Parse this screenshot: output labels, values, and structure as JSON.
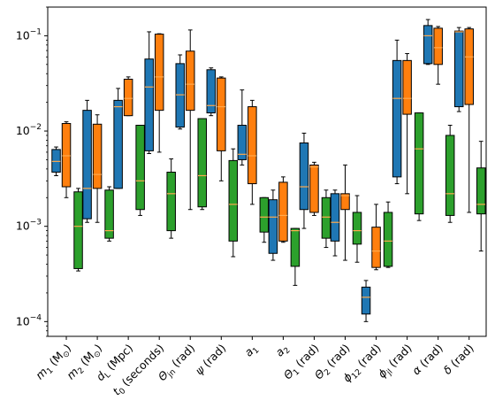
{
  "chart_data": {
    "type": "box",
    "title": "",
    "xlabel": "",
    "ylabel": "",
    "yscale": "log",
    "ylim": [
      7e-05,
      0.2
    ],
    "y_ticks": [
      {
        "value": 0.0001,
        "base": "10",
        "exp": "−4"
      },
      {
        "value": 0.001,
        "base": "10",
        "exp": "−3"
      },
      {
        "value": 0.01,
        "base": "10",
        "exp": "−2"
      },
      {
        "value": 0.1,
        "base": "10",
        "exp": "−1"
      }
    ],
    "categories": [
      {
        "main": "m",
        "sub": "1",
        "rest": " (M",
        "sub2": "⊙",
        "end": ")"
      },
      {
        "main": "m",
        "sub": "2",
        "rest": " (M",
        "sub2": "⊙",
        "end": ")"
      },
      {
        "main": "d",
        "sub": "L",
        "rest": " (Mpc)",
        "sub2": "",
        "end": ""
      },
      {
        "main": "t",
        "sub": "0",
        "rest": " (seconds)",
        "sub2": "",
        "end": ""
      },
      {
        "main": "Θ",
        "sub": "jn",
        "rest": " (rad)",
        "sub2": "",
        "end": ""
      },
      {
        "main": "ψ",
        "sub": "",
        "rest": " (rad)",
        "sub2": "",
        "end": ""
      },
      {
        "main": "a",
        "sub": "1",
        "rest": "",
        "sub2": "",
        "end": ""
      },
      {
        "main": "a",
        "sub": "2",
        "rest": "",
        "sub2": "",
        "end": ""
      },
      {
        "main": "Θ",
        "sub": "1",
        "rest": " (rad)",
        "sub2": "",
        "end": ""
      },
      {
        "main": "Θ",
        "sub": "2",
        "rest": " (rad)",
        "sub2": "",
        "end": ""
      },
      {
        "main": "ϕ",
        "sub": "12",
        "rest": " (rad)",
        "sub2": "",
        "end": ""
      },
      {
        "main": "ϕ",
        "sub": "jl",
        "rest": " (rad)",
        "sub2": "",
        "end": ""
      },
      {
        "main": "α",
        "sub": "",
        "rest": " (rad)",
        "sub2": "",
        "end": ""
      },
      {
        "main": "δ",
        "sub": "",
        "rest": " (rad)",
        "sub2": "",
        "end": ""
      }
    ],
    "series": [
      {
        "color": "#1f77b4",
        "boxes": [
          {
            "whislo": 0.0034,
            "q1": 0.0037,
            "med": 0.0048,
            "q3": 0.0064,
            "whishi": 0.0068
          },
          {
            "whislo": 0.0011,
            "q1": 0.0012,
            "med": 0.0025,
            "q3": 0.0165,
            "whishi": 0.021
          },
          {
            "whislo": 0.0025,
            "q1": 0.0025,
            "med": 0.018,
            "q3": 0.021,
            "whishi": 0.028
          },
          {
            "whislo": 0.0058,
            "q1": 0.0062,
            "med": 0.029,
            "q3": 0.057,
            "whishi": 0.11
          },
          {
            "whislo": 0.0105,
            "q1": 0.011,
            "med": 0.024,
            "q3": 0.051,
            "whishi": 0.063
          },
          {
            "whislo": 0.0145,
            "q1": 0.0155,
            "med": 0.0185,
            "q3": 0.044,
            "whishi": 0.046
          },
          {
            "whislo": 0.0044,
            "q1": 0.005,
            "med": 0.0057,
            "q3": 0.0115,
            "whishi": 0.027
          },
          {
            "whislo": 0.00044,
            "q1": 0.00052,
            "med": 0.00125,
            "q3": 0.0019,
            "whishi": 0.0024
          },
          {
            "whislo": 0.00095,
            "q1": 0.0015,
            "med": 0.0026,
            "q3": 0.0075,
            "whishi": 0.0095
          },
          {
            "whislo": 0.00049,
            "q1": 0.0007,
            "med": 0.0011,
            "q3": 0.0022,
            "whishi": 0.0024
          },
          {
            "whislo": 0.0001,
            "q1": 0.00012,
            "med": 0.00018,
            "q3": 0.00023,
            "whishi": 0.00027
          },
          {
            "whislo": 0.0028,
            "q1": 0.0033,
            "med": 0.022,
            "q3": 0.055,
            "whishi": 0.09
          },
          {
            "whislo": 0.05,
            "q1": 0.051,
            "med": 0.1,
            "q3": 0.128,
            "whishi": 0.148
          },
          {
            "whislo": 0.016,
            "q1": 0.018,
            "med": 0.11,
            "q3": 0.112,
            "whishi": 0.122
          }
        ]
      },
      {
        "color": "#ff7f0e",
        "boxes": [
          {
            "whislo": 0.002,
            "q1": 0.0026,
            "med": 0.0055,
            "q3": 0.012,
            "whishi": 0.0125
          },
          {
            "whislo": 0.0011,
            "q1": 0.0025,
            "med": 0.0035,
            "q3": 0.0118,
            "whishi": 0.0148
          },
          {
            "whislo": 0.0145,
            "q1": 0.0145,
            "med": 0.022,
            "q3": 0.035,
            "whishi": 0.037
          },
          {
            "whislo": 0.006,
            "q1": 0.0165,
            "med": 0.037,
            "q3": 0.104,
            "whishi": 0.105
          },
          {
            "whislo": 0.0015,
            "q1": 0.0165,
            "med": 0.031,
            "q3": 0.069,
            "whishi": 0.115
          },
          {
            "whislo": 0.003,
            "q1": 0.0062,
            "med": 0.018,
            "q3": 0.036,
            "whishi": 0.037
          },
          {
            "whislo": 0.0017,
            "q1": 0.0028,
            "med": 0.0055,
            "q3": 0.018,
            "whishi": 0.021
          },
          {
            "whislo": 0.00068,
            "q1": 0.0007,
            "med": 0.0013,
            "q3": 0.0029,
            "whishi": 0.0033
          },
          {
            "whislo": 0.0013,
            "q1": 0.0014,
            "med": 0.0042,
            "q3": 0.0044,
            "whishi": 0.0047
          },
          {
            "whislo": 0.00044,
            "q1": 0.0015,
            "med": 0.0021,
            "q3": 0.0022,
            "whishi": 0.0044
          },
          {
            "whislo": 0.00035,
            "q1": 0.00037,
            "med": 0.00055,
            "q3": 0.00098,
            "whishi": 0.0017
          },
          {
            "whislo": 0.0022,
            "q1": 0.015,
            "med": 0.022,
            "q3": 0.055,
            "whishi": 0.065
          },
          {
            "whislo": 0.031,
            "q1": 0.05,
            "med": 0.075,
            "q3": 0.12,
            "whishi": 0.125
          },
          {
            "whislo": 0.0014,
            "q1": 0.019,
            "med": 0.06,
            "q3": 0.118,
            "whishi": 0.122
          }
        ]
      },
      {
        "color": "#2ca02c",
        "boxes": [
          {
            "whislo": 0.00034,
            "q1": 0.00036,
            "med": 0.001,
            "q3": 0.0023,
            "whishi": 0.0025
          },
          {
            "whislo": 0.0007,
            "q1": 0.00075,
            "med": 0.0009,
            "q3": 0.0024,
            "whishi": 0.0026
          },
          {
            "whislo": 0.0013,
            "q1": 0.0015,
            "med": 0.003,
            "q3": 0.0115,
            "whishi": 0.0115
          },
          {
            "whislo": 0.00075,
            "q1": 0.0009,
            "med": 0.0022,
            "q3": 0.0037,
            "whishi": 0.0051
          },
          {
            "whislo": 0.0015,
            "q1": 0.0016,
            "med": 0.0034,
            "q3": 0.0135,
            "whishi": 0.0135
          },
          {
            "whislo": 0.00048,
            "q1": 0.0007,
            "med": 0.0017,
            "q3": 0.0049,
            "whishi": 0.0065
          },
          {
            "whislo": 0.00068,
            "q1": 0.00087,
            "med": 0.00125,
            "q3": 0.002,
            "whishi": 0.002
          },
          {
            "whislo": 0.00024,
            "q1": 0.00038,
            "med": 0.0009,
            "q3": 0.00095,
            "whishi": 0.00095
          },
          {
            "whislo": 0.0006,
            "q1": 0.00075,
            "med": 0.00125,
            "q3": 0.002,
            "whishi": 0.0024
          },
          {
            "whislo": 0.00042,
            "q1": 0.00065,
            "med": 0.0009,
            "q3": 0.0014,
            "whishi": 0.0021
          },
          {
            "whislo": 0.00037,
            "q1": 0.00038,
            "med": 0.0007,
            "q3": 0.0014,
            "whishi": 0.0018
          },
          {
            "whislo": 0.00115,
            "q1": 0.00135,
            "med": 0.0065,
            "q3": 0.0155,
            "whishi": 0.0155
          },
          {
            "whislo": 0.0011,
            "q1": 0.0013,
            "med": 0.0022,
            "q3": 0.009,
            "whishi": 0.0115
          },
          {
            "whislo": 0.00055,
            "q1": 0.00135,
            "med": 0.0017,
            "q3": 0.0041,
            "whishi": 0.0078
          }
        ]
      }
    ],
    "median_color": "#ffa94d",
    "grid": false,
    "legend": "none"
  }
}
